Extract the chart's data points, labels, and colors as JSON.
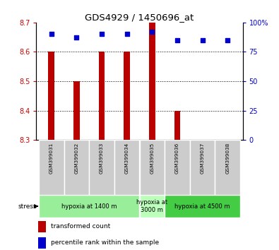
{
  "title": "GDS4929 / 1450696_at",
  "samples": [
    "GSM399031",
    "GSM399032",
    "GSM399033",
    "GSM399034",
    "GSM399035",
    "GSM399036",
    "GSM399037",
    "GSM399038"
  ],
  "red_values": [
    8.6,
    8.5,
    8.6,
    8.6,
    8.7,
    8.4,
    8.3,
    8.3
  ],
  "blue_values": [
    90,
    87,
    90,
    90,
    92,
    85,
    85,
    85
  ],
  "ylim_left": [
    8.3,
    8.7
  ],
  "ylim_right": [
    0,
    100
  ],
  "yticks_left": [
    8.3,
    8.4,
    8.5,
    8.6,
    8.7
  ],
  "yticks_right": [
    0,
    25,
    50,
    75,
    100
  ],
  "yticklabels_right": [
    "0",
    "25",
    "50",
    "75",
    "100%"
  ],
  "bar_color": "#bb0000",
  "dot_color": "#0000cc",
  "bar_bottom": 8.3,
  "bar_width": 0.25,
  "tick_label_color_left": "#cc0000",
  "tick_label_color_right": "#0000cc",
  "legend_red_label": "transformed count",
  "legend_blue_label": "percentile rank within the sample",
  "stress_label": "stress",
  "group_configs": [
    {
      "indices": [
        0,
        1,
        2,
        3
      ],
      "label": "hypoxia at 1400 m",
      "color": "#99ee99"
    },
    {
      "indices": [
        4
      ],
      "label": "hypoxia at\n3000 m",
      "color": "#bbffbb"
    },
    {
      "indices": [
        5,
        6,
        7
      ],
      "label": "hypoxia at 4500 m",
      "color": "#44cc44"
    }
  ],
  "sample_box_color": "#cccccc",
  "dotted_lines": [
    8.4,
    8.5,
    8.6
  ]
}
